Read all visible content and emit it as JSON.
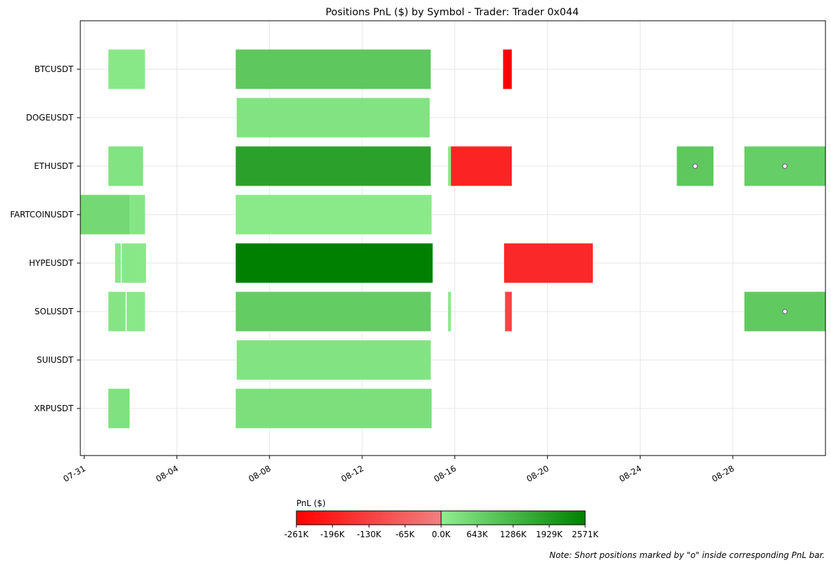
{
  "chart_data": {
    "type": "bar",
    "title": "Positions PnL ($) by Symbol - Trader: Trader 0x044",
    "symbols": [
      "BTCUSDT",
      "DOGEUSDT",
      "ETHUSDT",
      "FARTCOINUSDT",
      "HYPEUSDT",
      "SOLUSDT",
      "SUIUSDT",
      "XRPUSDT"
    ],
    "x_range": [
      "2025-07-30T20:00",
      "2025-09-01T00:00"
    ],
    "x_ticks": [
      {
        "date": "2025-07-31",
        "label": "07-31"
      },
      {
        "date": "2025-08-04",
        "label": "08-04"
      },
      {
        "date": "2025-08-08",
        "label": "08-08"
      },
      {
        "date": "2025-08-12",
        "label": "08-12"
      },
      {
        "date": "2025-08-16",
        "label": "08-16"
      },
      {
        "date": "2025-08-20",
        "label": "08-20"
      },
      {
        "date": "2025-08-24",
        "label": "08-24"
      },
      {
        "date": "2025-08-28",
        "label": "08-28"
      }
    ],
    "grid": true,
    "positions": [
      {
        "symbol": "BTCUSDT",
        "start": "2025-08-01T01:00",
        "end": "2025-08-02T15:00",
        "pnl": 150000,
        "short": false
      },
      {
        "symbol": "BTCUSDT",
        "start": "2025-08-06T13:00",
        "end": "2025-08-14T23:00",
        "pnl": 900000,
        "short": false
      },
      {
        "symbol": "BTCUSDT",
        "start": "2025-08-18T02:00",
        "end": "2025-08-18T11:00",
        "pnl": -261000,
        "short": false
      },
      {
        "symbol": "DOGEUSDT",
        "start": "2025-08-06T14:00",
        "end": "2025-08-14T22:00",
        "pnl": 250000,
        "short": false
      },
      {
        "symbol": "ETHUSDT",
        "start": "2025-08-01T01:00",
        "end": "2025-08-02T13:00",
        "pnl": 250000,
        "short": false
      },
      {
        "symbol": "ETHUSDT",
        "start": "2025-08-06T13:00",
        "end": "2025-08-14T23:00",
        "pnl": 1800000,
        "short": false
      },
      {
        "symbol": "ETHUSDT",
        "start": "2025-08-15T17:00",
        "end": "2025-08-15T20:00",
        "pnl": 100000,
        "short": false
      },
      {
        "symbol": "ETHUSDT",
        "start": "2025-08-15T20:00",
        "end": "2025-08-18T11:00",
        "pnl": -190000,
        "short": false
      },
      {
        "symbol": "ETHUSDT",
        "start": "2025-08-25T14:00",
        "end": "2025-08-27T04:00",
        "pnl": 900000,
        "short": true
      },
      {
        "symbol": "ETHUSDT",
        "start": "2025-08-28T12:00",
        "end": "2025-09-01T00:00",
        "pnl": 750000,
        "short": true
      },
      {
        "symbol": "FARTCOINUSDT",
        "start": "2025-07-30T20:00",
        "end": "2025-08-01T23:00",
        "pnl": 500000,
        "short": false
      },
      {
        "symbol": "FARTCOINUSDT",
        "start": "2025-08-01T23:00",
        "end": "2025-08-02T15:00",
        "pnl": 200000,
        "short": false
      },
      {
        "symbol": "FARTCOINUSDT",
        "start": "2025-08-06T13:00",
        "end": "2025-08-15T00:00",
        "pnl": 100000,
        "short": false
      },
      {
        "symbol": "HYPEUSDT",
        "start": "2025-08-01T08:00",
        "end": "2025-08-01T14:00",
        "pnl": 150000,
        "short": false
      },
      {
        "symbol": "HYPEUSDT",
        "start": "2025-08-01T15:00",
        "end": "2025-08-02T16:00",
        "pnl": 150000,
        "short": false
      },
      {
        "symbol": "HYPEUSDT",
        "start": "2025-08-06T13:00",
        "end": "2025-08-15T01:00",
        "pnl": 2571000,
        "short": false
      },
      {
        "symbol": "HYPEUSDT",
        "start": "2025-08-18T03:00",
        "end": "2025-08-21T23:00",
        "pnl": -180000,
        "short": false
      },
      {
        "symbol": "SOLUSDT",
        "start": "2025-08-01T01:00",
        "end": "2025-08-01T19:00",
        "pnl": 200000,
        "short": false
      },
      {
        "symbol": "SOLUSDT",
        "start": "2025-08-01T20:00",
        "end": "2025-08-02T15:00",
        "pnl": 150000,
        "short": false
      },
      {
        "symbol": "SOLUSDT",
        "start": "2025-08-06T13:00",
        "end": "2025-08-14T23:00",
        "pnl": 800000,
        "short": false
      },
      {
        "symbol": "SOLUSDT",
        "start": "2025-08-15T17:00",
        "end": "2025-08-15T20:00",
        "pnl": 100000,
        "short": false
      },
      {
        "symbol": "SOLUSDT",
        "start": "2025-08-18T04:00",
        "end": "2025-08-18T11:00",
        "pnl": -120000,
        "short": false
      },
      {
        "symbol": "SOLUSDT",
        "start": "2025-08-28T12:00",
        "end": "2025-09-01T00:00",
        "pnl": 850000,
        "short": true
      },
      {
        "symbol": "SUIUSDT",
        "start": "2025-08-06T14:00",
        "end": "2025-08-14T23:00",
        "pnl": 250000,
        "short": false
      },
      {
        "symbol": "XRPUSDT",
        "start": "2025-08-01T01:00",
        "end": "2025-08-01T23:00",
        "pnl": 300000,
        "short": false
      },
      {
        "symbol": "XRPUSDT",
        "start": "2025-08-06T13:00",
        "end": "2025-08-15T00:00",
        "pnl": 350000,
        "short": false
      }
    ],
    "colorbar": {
      "label": "PnL ($)",
      "min": -261000,
      "max": 2571000,
      "neg_ticks": [
        {
          "value": -261000,
          "label": "-261K"
        },
        {
          "value": -196000,
          "label": "-196K"
        },
        {
          "value": -130000,
          "label": "-130K"
        },
        {
          "value": -65000,
          "label": "-65K"
        },
        {
          "value": 0,
          "label": "0.0K"
        }
      ],
      "pos_ticks": [
        {
          "value": 643000,
          "label": "643K"
        },
        {
          "value": 1286000,
          "label": "1286K"
        },
        {
          "value": 1929000,
          "label": "1929K"
        },
        {
          "value": 2571000,
          "label": "2571K"
        }
      ]
    },
    "colors": {
      "neg_strong": "#ff0000",
      "neg_weak": "#f08080",
      "pos_weak": "#90ee90",
      "pos_strong": "#008000",
      "grid": "#e6e6e6"
    },
    "note": "Note: Short positions marked by \"o\" inside corresponding PnL bar."
  }
}
